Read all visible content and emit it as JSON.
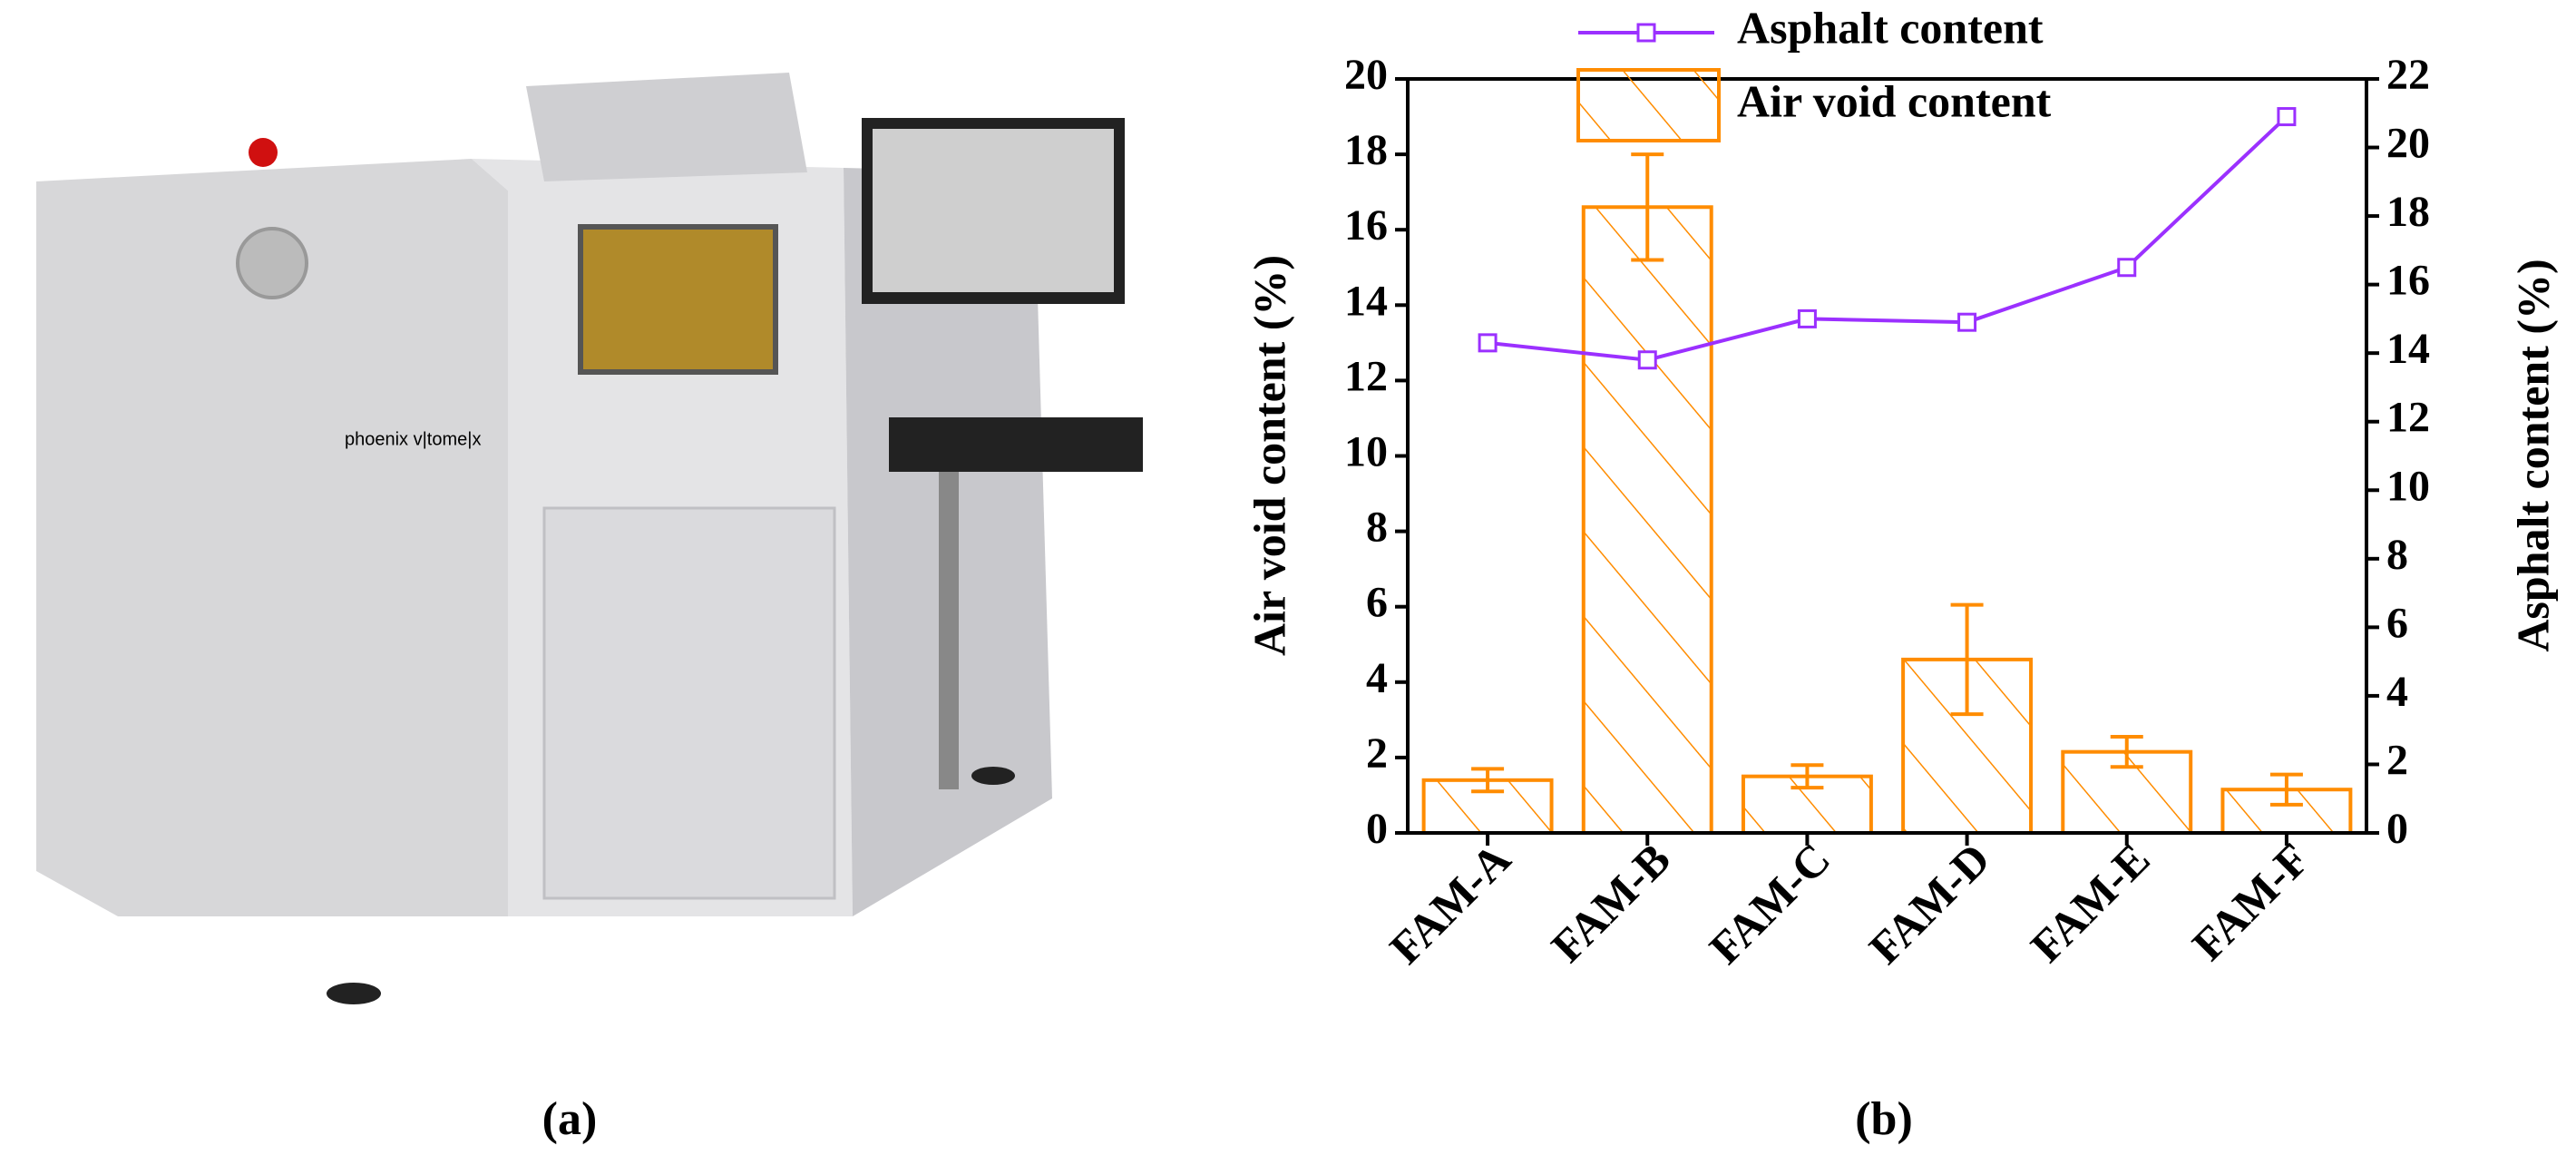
{
  "captions": [
    "(a)",
    "(b)"
  ],
  "photo": {
    "label": "phoenix v|tome|x"
  },
  "chart_data": {
    "type": "bar",
    "categories": [
      "FAM-A",
      "FAM-B",
      "FAM-C",
      "FAM-D",
      "FAM-E",
      "FAM-F"
    ],
    "ylabel": "Air void content (%)",
    "y2label": "Asphalt content (%)",
    "ylim": [
      0,
      20
    ],
    "yticks": [
      0,
      2,
      4,
      6,
      8,
      10,
      12,
      14,
      16,
      18,
      20
    ],
    "y2lim": [
      0,
      22
    ],
    "y2ticks": [
      0,
      2,
      4,
      6,
      8,
      10,
      12,
      14,
      16,
      18,
      20,
      22
    ],
    "series": [
      {
        "name": "Asphalt content",
        "type": "line",
        "axis": "y2",
        "color": "#9b30ff",
        "values": [
          14.3,
          13.8,
          15.0,
          14.9,
          16.5,
          20.9
        ]
      },
      {
        "name": "Air void content",
        "type": "bar",
        "color": "#ff8c00",
        "hatch": true,
        "values": [
          1.4,
          16.6,
          1.5,
          4.6,
          2.15,
          1.15
        ],
        "errors": [
          0.3,
          1.4,
          0.3,
          1.45,
          0.4,
          0.4
        ]
      }
    ]
  }
}
